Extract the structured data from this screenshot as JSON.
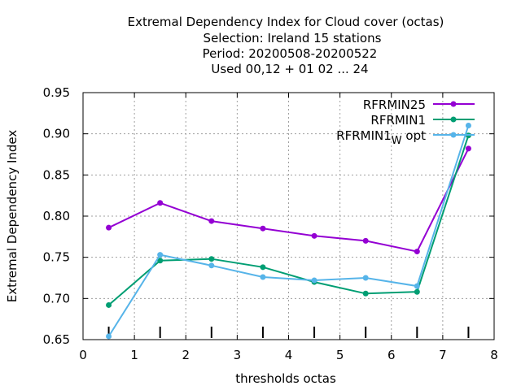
{
  "chart_data": {
    "type": "line",
    "title_lines": [
      "Extremal Dependency Index  for Cloud cover (octas)",
      "Selection: Ireland     15 stations",
      "Period: 20200508-20200522",
      "Used  00,12  + 01 02 ... 24"
    ],
    "xlabel": "thresholds octas",
    "ylabel": "Extremal Dependency Index",
    "xlim": [
      0,
      8
    ],
    "ylim": [
      0.65,
      0.95
    ],
    "xticks": [
      0,
      1,
      2,
      3,
      4,
      5,
      6,
      7,
      8
    ],
    "yticks": [
      0.65,
      0.7,
      0.75,
      0.8,
      0.85,
      0.9,
      0.95
    ],
    "x": [
      0.5,
      1.5,
      2.5,
      3.5,
      4.5,
      5.5,
      6.5,
      7.5
    ],
    "grid": true,
    "legend_position": "top-right",
    "series": [
      {
        "name": "RFRMIN25",
        "color": "#9400d3",
        "values": [
          0.786,
          0.816,
          0.794,
          0.785,
          0.776,
          0.77,
          0.757,
          0.882
        ]
      },
      {
        "name": "RFRMIN1",
        "color": "#009e73",
        "values": [
          0.692,
          0.746,
          0.748,
          0.738,
          0.72,
          0.706,
          0.708,
          0.898
        ]
      },
      {
        "name_main": "RFRMIN1",
        "name_sub": "W",
        "name_suffix": " opt",
        "color": "#56b4e9",
        "values": [
          0.654,
          0.753,
          0.74,
          0.726,
          0.722,
          0.725,
          0.715,
          0.91
        ]
      }
    ],
    "marker_ticks_x": [
      0.5,
      1.5,
      2.5,
      3.5,
      4.5,
      5.5,
      6.5,
      7.5
    ]
  }
}
